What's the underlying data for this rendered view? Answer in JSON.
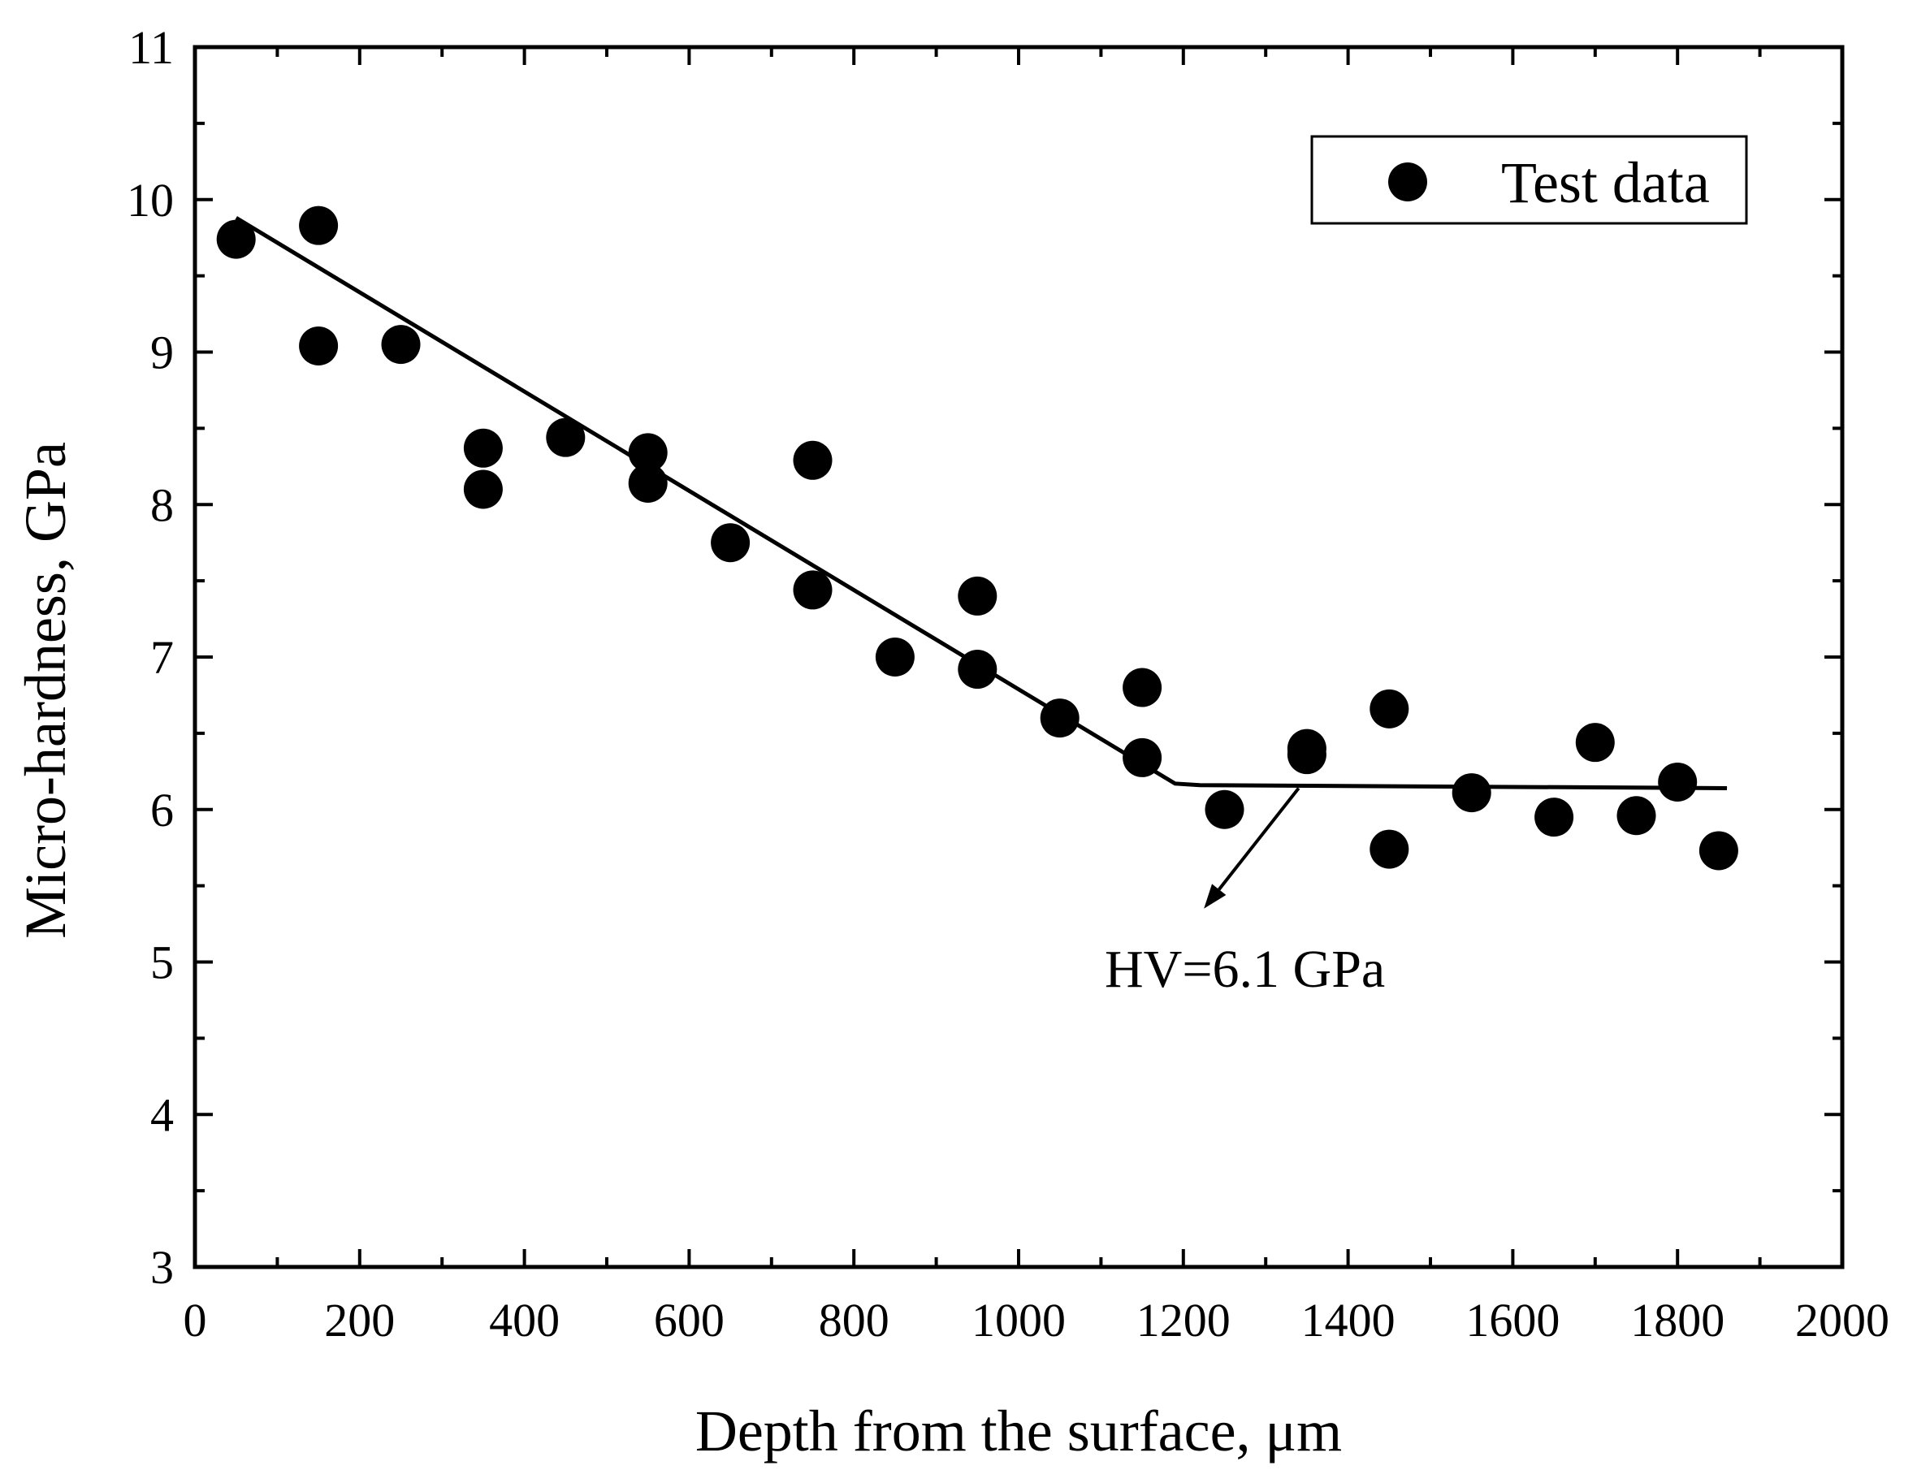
{
  "chart_data": {
    "type": "scatter",
    "xlabel": "Depth from the surface, μm",
    "ylabel": "Micro-hardness, GPa",
    "xlim": [
      0,
      2000
    ],
    "ylim": [
      3,
      11
    ],
    "xticks": [
      0,
      200,
      400,
      600,
      800,
      1000,
      1200,
      1400,
      1600,
      1800,
      2000
    ],
    "yticks": [
      3,
      4,
      5,
      6,
      7,
      8,
      9,
      10,
      11
    ],
    "grid": false,
    "legend": {
      "position": "top-right",
      "label": "Test data"
    },
    "series": [
      {
        "name": "Test data",
        "marker": "filled-circle",
        "color": "#000000",
        "x": [
          50,
          150,
          150,
          250,
          350,
          350,
          450,
          550,
          550,
          650,
          750,
          750,
          850,
          950,
          950,
          1050,
          1150,
          1150,
          1250,
          1350,
          1350,
          1450,
          1450,
          1550,
          1650,
          1700,
          1750,
          1800,
          1850
        ],
        "y": [
          9.74,
          9.83,
          9.04,
          9.05,
          8.37,
          8.1,
          8.44,
          8.34,
          8.14,
          7.75,
          8.29,
          7.44,
          7.0,
          7.4,
          6.92,
          6.6,
          6.8,
          6.34,
          6.0,
          6.4,
          6.36,
          6.66,
          5.74,
          6.11,
          5.95,
          6.44,
          5.96,
          6.18,
          5.73
        ]
      }
    ],
    "fit_line": {
      "name": "bilinear fit",
      "x": [
        50,
        1190,
        1220,
        1860
      ],
      "y": [
        9.88,
        6.17,
        6.16,
        6.14
      ]
    },
    "annotation": {
      "text": "HV=6.1 GPa",
      "arrow_from": [
        1340,
        6.14
      ],
      "arrow_to": [
        1225,
        5.35
      ]
    }
  }
}
